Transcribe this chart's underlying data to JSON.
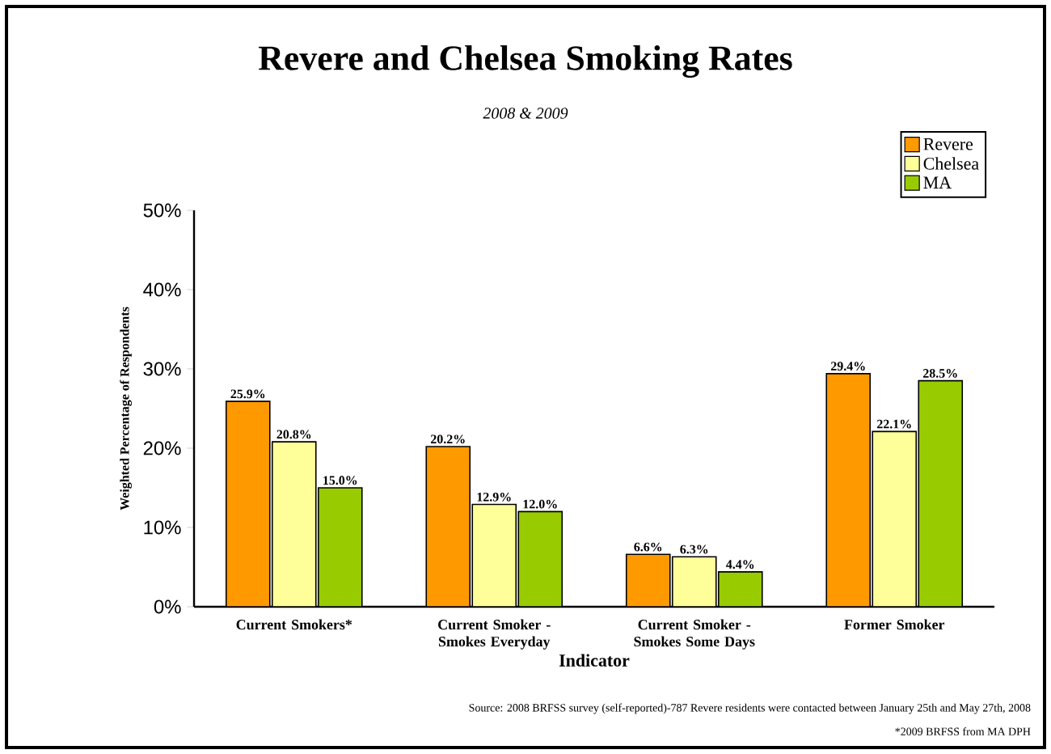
{
  "chart_data": {
    "type": "bar",
    "title": "Revere and Chelsea Smoking Rates",
    "subtitle": "2008 & 2009",
    "xlabel": "Indicator",
    "ylabel": "Weighted Percentage of Respondents",
    "categories": [
      "Current Smokers*",
      "Current Smoker - Smokes Everyday",
      "Current Smoker - Smokes Some Days",
      "Former Smoker"
    ],
    "series": [
      {
        "name": "Revere",
        "color": "#ff9900",
        "values": [
          25.9,
          20.2,
          6.6,
          29.4
        ],
        "value_labels": [
          "25.9%",
          "20.2%",
          "6.6%",
          "29.4%"
        ]
      },
      {
        "name": "Chelsea",
        "color": "#ffff99",
        "values": [
          20.8,
          12.9,
          6.3,
          22.1
        ],
        "value_labels": [
          "20.8%",
          "12.9%",
          "6.3%",
          "22.1%"
        ]
      },
      {
        "name": "MA",
        "color": "#99cc00",
        "values": [
          15.0,
          12.0,
          4.4,
          28.5
        ],
        "value_labels": [
          "15.0%",
          "12.0%",
          "4.4%",
          "28.5%"
        ]
      }
    ],
    "ylim": [
      0,
      50
    ],
    "yticks": [
      {
        "value": 0,
        "label": "0%"
      },
      {
        "value": 10,
        "label": "10%"
      },
      {
        "value": 20,
        "label": "20%"
      },
      {
        "value": 30,
        "label": "30%"
      },
      {
        "value": 40,
        "label": "40%"
      },
      {
        "value": 50,
        "label": "50%"
      }
    ],
    "legend": "top right",
    "annotations": [
      "Source: 2008 BRFSS survey (self-reported)-787 Revere residents were contacted between January 25th and May 27th, 2008",
      "*2009 BRFSS from MA DPH"
    ]
  }
}
